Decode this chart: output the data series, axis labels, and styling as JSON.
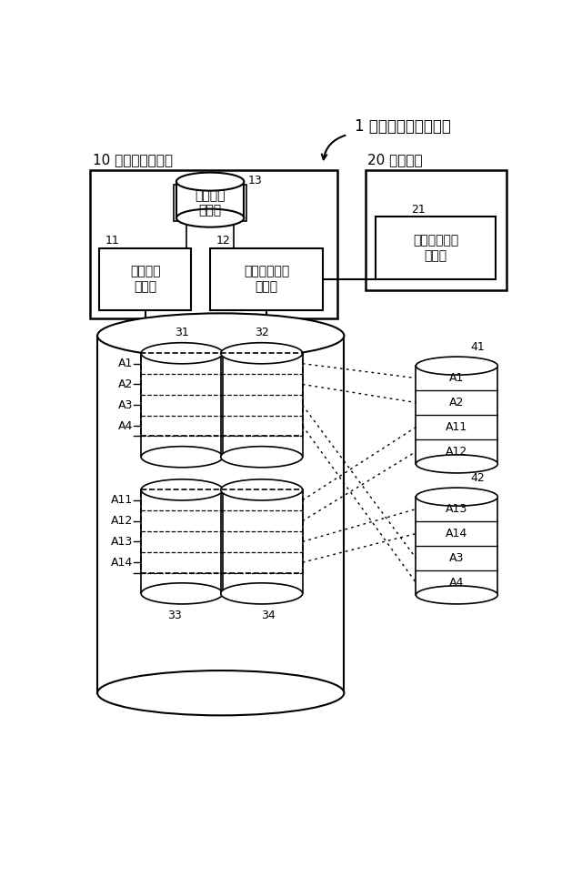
{
  "title": "1 ストレージシステム",
  "label_storage_device": "10 ストレージ装置",
  "label_management_device": "20 管理装置",
  "box11_label": "アクセス\n処理部",
  "box11_id": "11",
  "box12_label": "データ無効化\n処理部",
  "box12_id": "12",
  "box13_label": "暗号キー\n記憶部",
  "box13_id": "13",
  "box21_label": "データ無効化\n制御部",
  "box21_id": "21",
  "disk31_id": "31",
  "disk32_id": "32",
  "disk33_id": "33",
  "disk34_id": "34",
  "disk41_id": "41",
  "disk42_id": "42",
  "disk41_sections": [
    "A1",
    "A2",
    "A11",
    "A12"
  ],
  "disk42_sections": [
    "A13",
    "A14",
    "A3",
    "A4"
  ],
  "left_labels_top": [
    "A1",
    "A2",
    "A3",
    "A4"
  ],
  "left_labels_bottom": [
    "A11",
    "A12",
    "A13",
    "A14"
  ],
  "bg_color": "#ffffff",
  "line_color": "#000000"
}
